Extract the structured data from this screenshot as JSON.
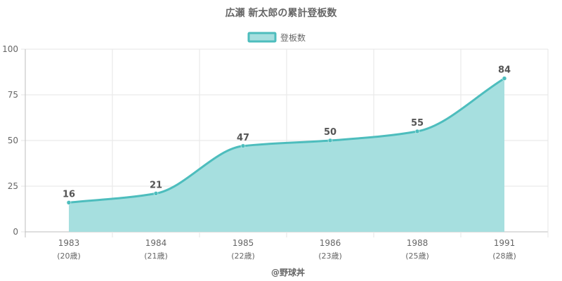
{
  "chart_data": {
    "type": "area",
    "title": "広瀬 新太郎の累計登板数",
    "categories": [
      "1983",
      "1984",
      "1985",
      "1986",
      "1988",
      "1991"
    ],
    "category_sublabels": [
      "(20歳)",
      "(21歳)",
      "(22歳)",
      "(23歳)",
      "(25歳)",
      "(28歳)"
    ],
    "series": [
      {
        "name": "登板数",
        "values": [
          16,
          21,
          47,
          50,
          55,
          84
        ]
      }
    ],
    "ylim": [
      0,
      100
    ],
    "yticks": [
      0,
      25,
      50,
      75,
      100
    ],
    "grid": true,
    "legend_position": "top",
    "colors": {
      "line": "#4dbdbd",
      "fill": "#a6dfdf",
      "point": "#4dbdbd"
    }
  },
  "credit": "@野球丼"
}
